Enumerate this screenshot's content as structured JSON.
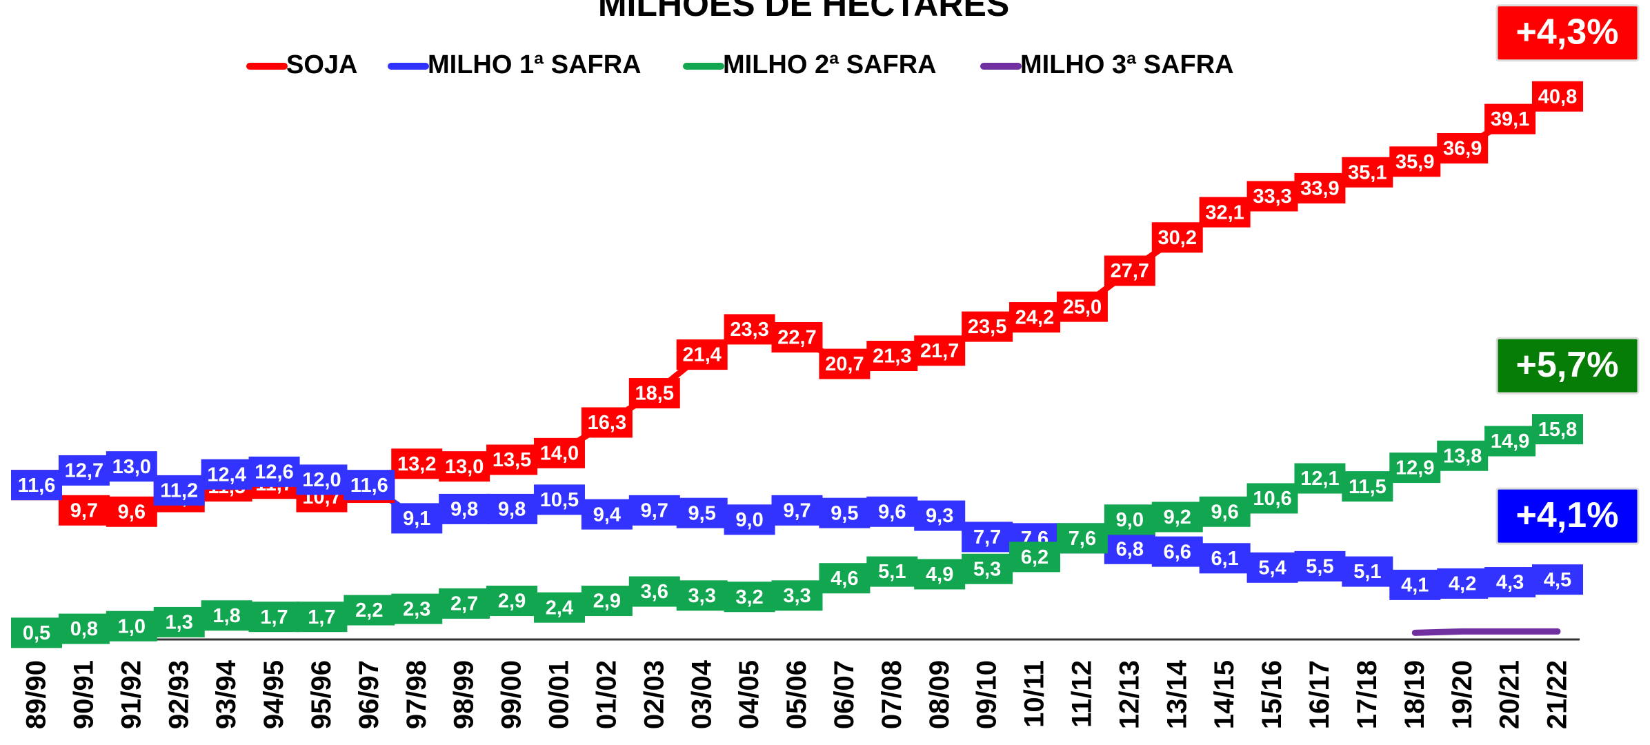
{
  "chart_data": {
    "type": "line",
    "title": "MILHÕES DE HECTARES",
    "categories": [
      "89/90",
      "90/91",
      "91/92",
      "92/93",
      "93/94",
      "94/95",
      "95/96",
      "96/97",
      "97/98",
      "98/99",
      "99/00",
      "00/01",
      "01/02",
      "02/03",
      "03/04",
      "04/05",
      "05/06",
      "06/07",
      "07/08",
      "08/09",
      "09/10",
      "10/11",
      "11/12",
      "12/13",
      "13/14",
      "14/15",
      "15/16",
      "16/17",
      "17/18",
      "18/19",
      "19/20",
      "20/21",
      "21/22"
    ],
    "ylim": [
      0,
      44
    ],
    "series": [
      {
        "name": "SOJA",
        "color": "#ff0000",
        "growth_label": "+4,3%",
        "badge_color": "#ff0000",
        "values": [
          11.6,
          9.7,
          9.6,
          10.7,
          11.5,
          11.7,
          10.7,
          11.4,
          13.2,
          13.0,
          13.5,
          14.0,
          16.3,
          18.5,
          21.4,
          23.3,
          22.7,
          20.7,
          21.3,
          21.7,
          23.5,
          24.2,
          25.0,
          27.7,
          30.2,
          32.1,
          33.3,
          33.9,
          35.1,
          35.9,
          36.9,
          39.1,
          40.8
        ],
        "value_labels": [
          "11,6",
          "9,7",
          "9,6",
          "10,7",
          "11,5",
          "11,7",
          "10,7",
          "11,4",
          "13,2",
          "13,0",
          "13,5",
          "14,0",
          "16,3",
          "18,5",
          "21,4",
          "23,3",
          "22,7",
          "20,7",
          "21,3",
          "21,7",
          "23,5",
          "24,2",
          "25,0",
          "27,7",
          "30,2",
          "32,1",
          "33,3",
          "33,9",
          "35,1",
          "35,9",
          "36,9",
          "39,1",
          "40,8"
        ]
      },
      {
        "name": "MILHO 1ª SAFRA",
        "color": "#3333ff",
        "growth_label": "+4,1%",
        "badge_color": "#0000ff",
        "values": [
          11.6,
          12.7,
          13.0,
          11.2,
          12.4,
          12.6,
          12.0,
          11.6,
          9.1,
          9.8,
          9.8,
          10.5,
          9.4,
          9.7,
          9.5,
          9.0,
          9.7,
          9.5,
          9.6,
          9.3,
          7.7,
          7.6,
          7.6,
          6.8,
          6.6,
          6.1,
          5.4,
          5.5,
          5.1,
          4.1,
          4.2,
          4.3,
          4.5
        ],
        "value_labels": [
          "11,6",
          "12,7",
          "13,0",
          "11,2",
          "12,4",
          "12,6",
          "12,0",
          "11,6",
          "9,1",
          "9,8",
          "9,8",
          "10,5",
          "9,4",
          "9,7",
          "9,5",
          "9,0",
          "9,7",
          "9,5",
          "9,6",
          "9,3",
          "7,7",
          "7,6",
          "7,6",
          "6,8",
          "6,6",
          "6,1",
          "5,4",
          "5,5",
          "5,1",
          "4,1",
          "4,2",
          "4,3",
          "4,5"
        ]
      },
      {
        "name": "MILHO 2ª SAFRA",
        "color": "#12a650",
        "growth_label": "+5,7%",
        "badge_color": "#067d06",
        "values": [
          0.5,
          0.8,
          1.0,
          1.3,
          1.8,
          1.7,
          1.7,
          2.2,
          2.3,
          2.7,
          2.9,
          2.4,
          2.9,
          3.6,
          3.3,
          3.2,
          3.3,
          4.6,
          5.1,
          4.9,
          5.3,
          6.2,
          7.6,
          9.0,
          9.2,
          9.6,
          10.6,
          12.1,
          11.5,
          12.9,
          13.8,
          14.9,
          15.8
        ],
        "value_labels": [
          "0,5",
          "0,8",
          "1,0",
          "1,3",
          "1,8",
          "1,7",
          "1,7",
          "2,2",
          "2,3",
          "2,7",
          "2,9",
          "2,4",
          "2,9",
          "3,6",
          "3,3",
          "3,2",
          "3,3",
          "4,6",
          "5,1",
          "4,9",
          "5,3",
          "6,2",
          "7,6",
          "9,0",
          "9,2",
          "9,6",
          "10,6",
          "12,1",
          "11,5",
          "12,9",
          "13,8",
          "14,9",
          "15,8"
        ]
      },
      {
        "name": "MILHO 3ª SAFRA",
        "color": "#7030a0",
        "values": [
          null,
          null,
          null,
          null,
          null,
          null,
          null,
          null,
          null,
          null,
          null,
          null,
          null,
          null,
          null,
          null,
          null,
          null,
          null,
          null,
          null,
          null,
          null,
          null,
          null,
          null,
          null,
          null,
          null,
          0.5,
          0.6,
          0.6,
          0.6
        ]
      }
    ]
  }
}
